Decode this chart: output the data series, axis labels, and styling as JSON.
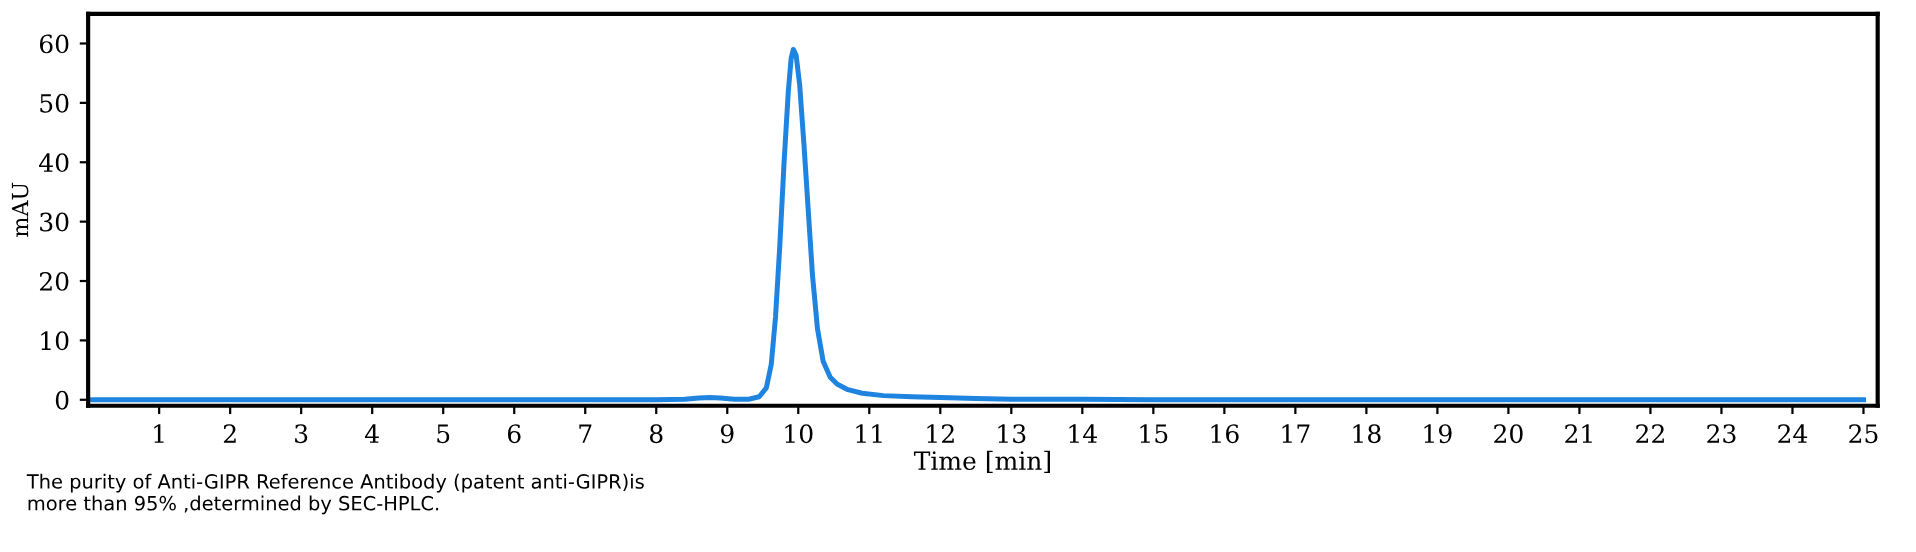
{
  "chart_data": {
    "type": "line",
    "xlabel": "Time [min]",
    "ylabel": "mAU",
    "annotations": [
      "The purity of Anti-GIPR Reference Antibody (patent anti-GIPR)is\nmore than 95% ,determined by SEC-HPLC."
    ],
    "xlim": [
      0,
      25.2
    ],
    "ylim": [
      -1,
      65
    ],
    "xticks": [
      1,
      2,
      3,
      4,
      5,
      6,
      7,
      8,
      9,
      10,
      11,
      12,
      13,
      14,
      15,
      16,
      17,
      18,
      19,
      20,
      21,
      22,
      23,
      24,
      25
    ],
    "yticks": [
      0,
      10,
      20,
      30,
      40,
      50,
      60
    ],
    "marker": "none",
    "line_style": "solid",
    "series": [
      {
        "color": "#1f84e0",
        "x": [
          0,
          2,
          4,
          6,
          8,
          8.4,
          8.6,
          8.75,
          8.9,
          9.1,
          9.3,
          9.45,
          9.55,
          9.62,
          9.68,
          9.74,
          9.8,
          9.86,
          9.9,
          9.93,
          9.97,
          10.02,
          10.08,
          10.14,
          10.2,
          10.27,
          10.35,
          10.45,
          10.55,
          10.7,
          10.9,
          11.2,
          11.6,
          12,
          12.5,
          13,
          14,
          15,
          17,
          19,
          21,
          23,
          25
        ],
        "values": [
          0,
          0,
          0,
          0,
          0,
          0.1,
          0.3,
          0.4,
          0.3,
          0.1,
          0.1,
          0.5,
          2,
          6,
          14,
          26,
          40,
          52,
          57.5,
          59,
          58,
          53,
          43,
          32,
          21,
          12,
          6.5,
          3.8,
          2.6,
          1.7,
          1.1,
          0.7,
          0.5,
          0.4,
          0.2,
          0.1,
          0.1,
          0,
          0,
          0,
          0,
          0,
          0
        ]
      }
    ]
  }
}
